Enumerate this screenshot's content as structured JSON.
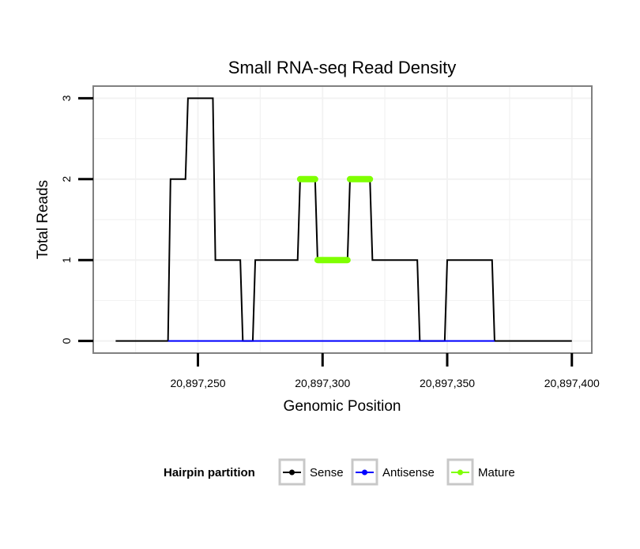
{
  "chart_data": {
    "type": "line",
    "title": "Small RNA-seq Read Density",
    "xlabel": "Genomic Position",
    "ylabel": "Total Reads",
    "xlim": [
      20897208,
      20897408
    ],
    "ylim": [
      -0.15,
      3.15
    ],
    "x_ticks": [
      20897250,
      20897300,
      20897350,
      20897400
    ],
    "x_tick_labels": [
      "20,897,250",
      "20,897,300",
      "20,897,350",
      "20,897,400"
    ],
    "y_ticks": [
      0,
      1,
      2,
      3
    ],
    "y_tick_labels": [
      "0",
      "1",
      "2",
      "3"
    ],
    "grid": true,
    "legend_position": "bottom",
    "series": [
      {
        "name": "Sense",
        "color": "#000000",
        "points": [
          [
            20897217,
            0
          ],
          [
            20897238,
            0
          ],
          [
            20897239,
            2
          ],
          [
            20897245,
            2
          ],
          [
            20897246,
            3
          ],
          [
            20897256,
            3
          ],
          [
            20897257,
            1
          ],
          [
            20897267,
            1
          ],
          [
            20897268,
            0
          ],
          [
            20897272,
            0
          ],
          [
            20897273,
            1
          ],
          [
            20897290,
            1
          ],
          [
            20897291,
            2
          ],
          [
            20897297,
            2
          ],
          [
            20897298,
            1
          ],
          [
            20897310,
            1
          ],
          [
            20897311,
            2
          ],
          [
            20897319,
            2
          ],
          [
            20897320,
            1
          ],
          [
            20897338,
            1
          ],
          [
            20897339,
            0
          ],
          [
            20897349,
            0
          ],
          [
            20897350,
            1
          ],
          [
            20897368,
            1
          ],
          [
            20897369,
            0
          ],
          [
            20897400,
            0
          ]
        ]
      },
      {
        "name": "Antisense",
        "color": "#0000ff",
        "points": [
          [
            20897238,
            0
          ],
          [
            20897369,
            0
          ]
        ]
      },
      {
        "name": "Mature",
        "color": "#7fff00",
        "segments": [
          [
            [
              20897291,
              2
            ],
            [
              20897297,
              2
            ]
          ],
          [
            [
              20897298,
              1
            ],
            [
              20897310,
              1
            ]
          ],
          [
            [
              20897311,
              2
            ],
            [
              20897319,
              2
            ]
          ]
        ]
      }
    ],
    "legend": {
      "title": "Hairpin partition",
      "entries": [
        "Sense",
        "Antisense",
        "Mature"
      ]
    }
  }
}
